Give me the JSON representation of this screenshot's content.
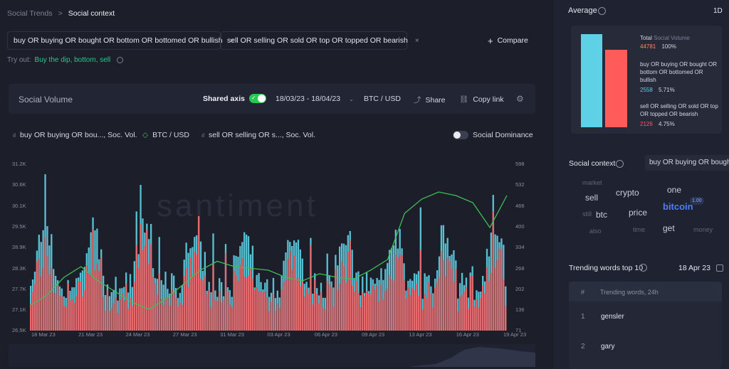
{
  "breadcrumb": {
    "parent": "Social Trends",
    "sep": ">",
    "current": "Social context"
  },
  "queries": [
    {
      "text": "buy OR buying OR bought OR bottom OR bottomed OR bullish",
      "close": "×"
    },
    {
      "text": "sell OR selling OR sold OR top OR topped OR bearish",
      "close": "×"
    }
  ],
  "compare": {
    "icon": "+",
    "label": "Compare"
  },
  "tryout": {
    "label": "Try out:",
    "suggestion": "Buy the dip, bottom, sell"
  },
  "toolbar": {
    "title": "Social Volume",
    "shared_axis": "Shared axis",
    "date_range": "18/03/23 - 18/04/23",
    "pair": "BTC / USD",
    "share": "Share",
    "copy_link": "Copy link"
  },
  "legend": {
    "series1": "buy OR buying OR bou..., Soc. Vol.",
    "series2": "BTC / USD",
    "series3": "sell OR selling OR s..., Soc. Vol.",
    "dominance": "Social Dominance"
  },
  "watermark": "santiment",
  "colors": {
    "buy": "#5fd1e6",
    "sell": "#ff5b5b",
    "price": "#3fbf56",
    "accent": "#26c953",
    "link": "#4f7cff"
  },
  "chart_data": {
    "type": "bar",
    "x_range": [
      "18 Mar 23",
      "19 Apr 23"
    ],
    "x_ticks": [
      "18 Mar 23",
      "21 Mar 23",
      "24 Mar 23",
      "27 Mar 23",
      "31 Mar 23",
      "03 Apr 23",
      "06 Apr 23",
      "09 Apr 23",
      "13 Apr 23",
      "16 Apr 23",
      "19 Apr 23"
    ],
    "y_left_ticks": [
      "31.2K",
      "30.6K",
      "30.1K",
      "29.5K",
      "28.9K",
      "28.3K",
      "27.7K",
      "27.1K",
      "26.5K"
    ],
    "y_right_ticks": [
      "598",
      "532",
      "466",
      "400",
      "334",
      "268",
      "202",
      "136",
      "71"
    ],
    "series": [
      {
        "name": "buy OR buying OR bou..., Soc. Vol.",
        "color": "#5fd1e6",
        "axis": "right"
      },
      {
        "name": "sell OR selling OR s..., Soc. Vol.",
        "color": "#ff5b5b",
        "axis": "right"
      },
      {
        "name": "BTC / USD",
        "color": "#3fbf56",
        "axis": "left",
        "values": [
          27200,
          27500,
          28000,
          28300,
          27900,
          27600,
          27300,
          27100,
          27400,
          27800,
          28200,
          28450,
          28300,
          28250,
          28200,
          28000,
          27900,
          28100,
          28000,
          27950,
          28200,
          28500,
          29800,
          30200,
          30400,
          30300,
          30100,
          29400,
          30300
        ]
      }
    ],
    "grid": false,
    "legend_position": "top-left"
  },
  "average": {
    "title": "Average",
    "period": "1D",
    "total_label": "Total",
    "total_metric": "Social Volume",
    "total_value": "44781",
    "total_pct": "100%",
    "items": [
      {
        "label": "buy OR buying OR bought OR bottom OR bottomed OR bullish",
        "value": "2558",
        "pct": "5.71%"
      },
      {
        "label": "sell OR selling OR sold OR top OR topped OR bearish",
        "value": "2126",
        "pct": "4.75%"
      }
    ]
  },
  "social_context": {
    "title": "Social context",
    "query": "buy OR buying OR bough",
    "words": [
      {
        "text": "market"
      },
      {
        "text": "sell"
      },
      {
        "text": "crypto"
      },
      {
        "text": "one"
      },
      {
        "text": "still"
      },
      {
        "text": "btc"
      },
      {
        "text": "price"
      },
      {
        "text": "bitcoin"
      },
      {
        "text": "1.00"
      },
      {
        "text": "also"
      },
      {
        "text": "time"
      },
      {
        "text": "get"
      },
      {
        "text": "money"
      }
    ]
  },
  "trending": {
    "title": "Trending words top 10",
    "date": "18 Apr 23",
    "col_num": "#",
    "col_words": "Trending words, 24h",
    "rows": [
      {
        "n": "1",
        "word": "gensler"
      },
      {
        "n": "2",
        "word": "gary"
      }
    ]
  }
}
